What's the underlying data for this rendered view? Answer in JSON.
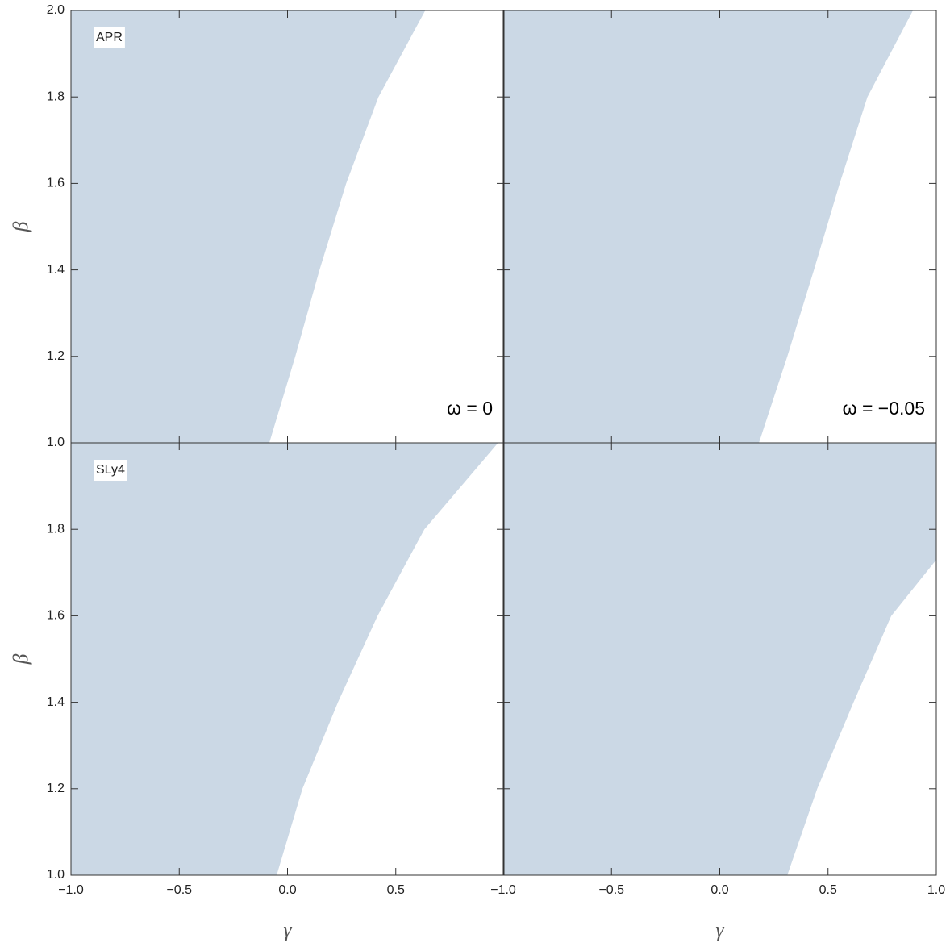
{
  "chart_data": [
    {
      "type": "area",
      "label": "APR",
      "annotation": "ω = 0",
      "ylabel": "β",
      "color": "#cbd8e5",
      "xlim": [
        -1,
        1
      ],
      "ylim": [
        1,
        2
      ],
      "x": [
        -0.086,
        0.034,
        0.146,
        0.269,
        0.418,
        0.634
      ],
      "values": [
        1.0,
        1.2,
        1.4,
        1.6,
        1.8,
        2.0
      ],
      "yticks": [
        {
          "value": 1,
          "label": "1.0"
        },
        1.2,
        1.4,
        1.6,
        1.8,
        {
          "value": 2,
          "label": "2.0"
        }
      ]
    },
    {
      "type": "area",
      "annotation": "ω = −0.05",
      "color": "#cbd8e5",
      "xlim": [
        -1,
        1
      ],
      "ylim": [
        1,
        2
      ],
      "x": [
        0.179,
        0.31,
        0.433,
        0.552,
        0.68,
        0.89
      ],
      "values": [
        1.0,
        1.2,
        1.4,
        1.6,
        1.8,
        2.0
      ]
    },
    {
      "type": "area",
      "label": "SLy4",
      "ylabel": "β",
      "xlabel": "γ",
      "color": "#cbd8e5",
      "xlim": [
        -1,
        1
      ],
      "ylim": [
        1,
        2
      ],
      "x": [
        -0.052,
        0.067,
        0.231,
        0.414,
        0.63,
        0.97
      ],
      "values": [
        1.0,
        1.2,
        1.4,
        1.6,
        1.8,
        2.0
      ],
      "yticks": [
        {
          "value": 1,
          "label": "1.0"
        },
        1.2,
        1.4,
        1.6,
        1.8
      ],
      "xticks": [
        {
          "value": -1,
          "label": "−1.0"
        },
        {
          "value": -0.5,
          "label": "−0.5"
        },
        {
          "value": 0,
          "label": "0.0"
        },
        0.5
      ]
    },
    {
      "type": "area",
      "xlabel": "γ",
      "color": "#cbd8e5",
      "xlim": [
        -1,
        1
      ],
      "ylim": [
        1,
        2
      ],
      "x": [
        0.31,
        0.448,
        0.616,
        0.79,
        1.0
      ],
      "values": [
        1.0,
        1.2,
        1.4,
        1.6,
        1.731
      ],
      "xticks": [
        {
          "value": -1,
          "label": "−1.0"
        },
        {
          "value": -0.5,
          "label": "−0.5"
        },
        {
          "value": 0,
          "label": "0.0"
        },
        0.5,
        {
          "value": 1,
          "label": "1.0"
        }
      ]
    }
  ]
}
